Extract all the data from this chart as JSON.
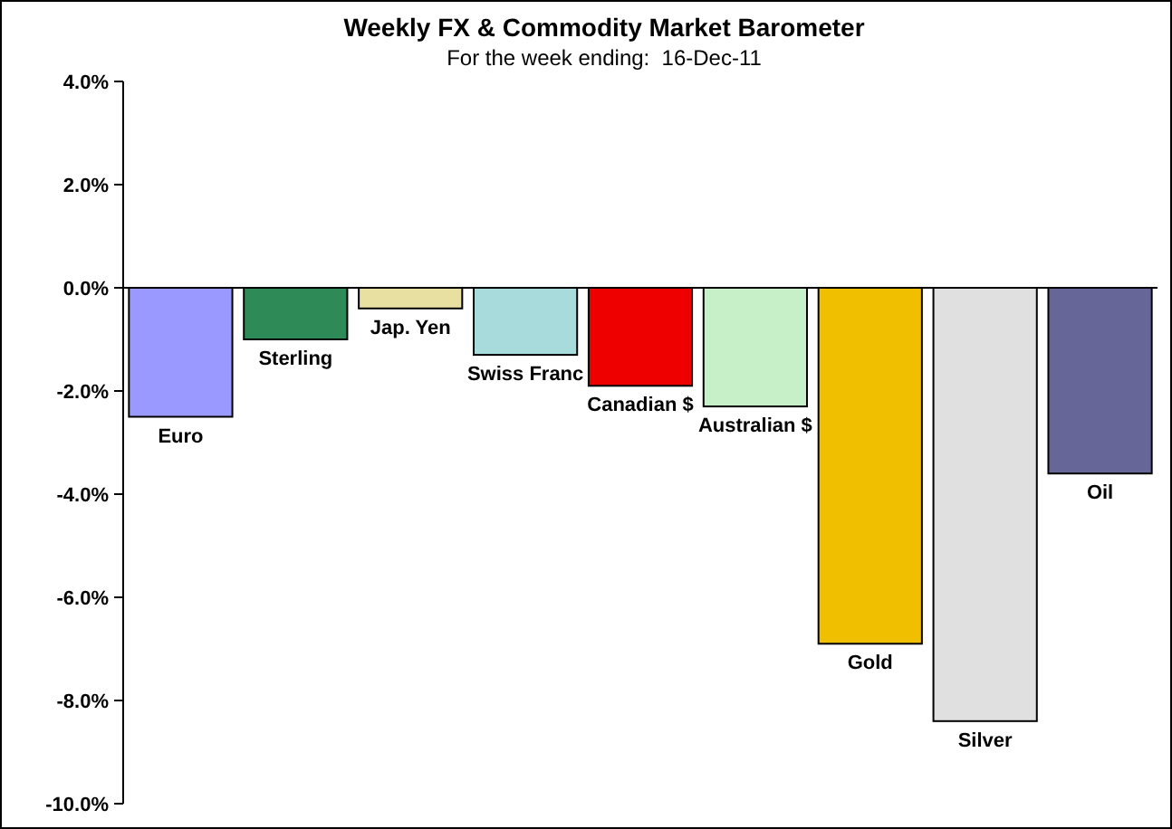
{
  "chart_data": {
    "type": "bar",
    "title": "Weekly FX & Commodity Market Barometer",
    "subtitle": "For the week ending:  16-Dec-11",
    "categories": [
      "Euro",
      "Sterling",
      "Jap. Yen",
      "Swiss Franc",
      "Canadian $",
      "Australian $",
      "Gold",
      "Silver",
      "Oil"
    ],
    "values": [
      -2.5,
      -1.0,
      -0.4,
      -1.3,
      -1.9,
      -2.3,
      -6.9,
      -8.4,
      -3.6
    ],
    "colors": [
      "#9999ff",
      "#2e8b57",
      "#e8e0a0",
      "#a8dcdc",
      "#ee0000",
      "#c8f0c8",
      "#f0c000",
      "#e0e0e0",
      "#666699"
    ],
    "ylim": [
      -10,
      4
    ],
    "yticks": [
      {
        "value": -10,
        "label": "-10.0%"
      },
      {
        "value": -8,
        "label": "-8.0%"
      },
      {
        "value": -6,
        "label": "-6.0%"
      },
      {
        "value": -4,
        "label": "-4.0%"
      },
      {
        "value": -2,
        "label": "-2.0%"
      },
      {
        "value": 0,
        "label": "0.0%"
      },
      {
        "value": 2,
        "label": "2.0%"
      },
      {
        "value": 4,
        "label": "4.0%"
      }
    ]
  }
}
